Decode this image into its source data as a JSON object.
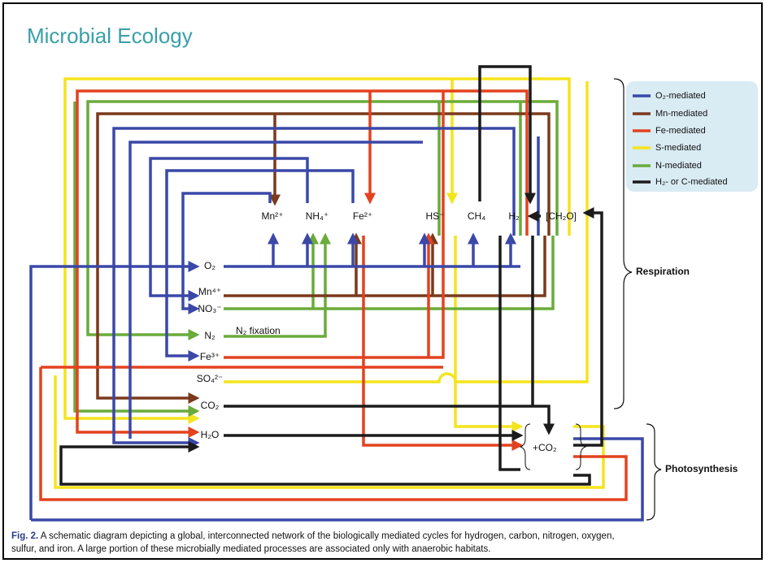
{
  "header": {
    "title": "Microbial Ecology"
  },
  "legend": [
    "O₂-mediated",
    "Mn-mediated",
    "Fe-mediated",
    "S-mediated",
    "N-mediated",
    "H₂- or C-mediated"
  ],
  "left_species": [
    "O₂",
    "Mn⁴⁺",
    "NO₃⁻",
    "N₂",
    "Fe³⁺",
    "SO₄²⁻",
    "CO₂",
    "H₂O"
  ],
  "top_species": [
    "Mn²⁺",
    "NH₄⁺",
    "Fe²⁺",
    "HS⁻",
    "CH₄",
    "H₂",
    "[CH₂O]"
  ],
  "annotations": {
    "n2_fixation": "N₂ fixation",
    "co2": "+CO₂",
    "respiration": "Respiration",
    "photosynthesis": "Photosynthesis"
  },
  "caption": {
    "label": "Fig. 2.",
    "lines": [
      "A schematic diagram depicting a global, interconnected network of the biologically mediated cycles for hydrogen, carbon, nitrogen, oxygen,",
      "sulfur, and iron. A large portion of these microbially mediated processes are associated only with anaerobic habitats."
    ]
  }
}
